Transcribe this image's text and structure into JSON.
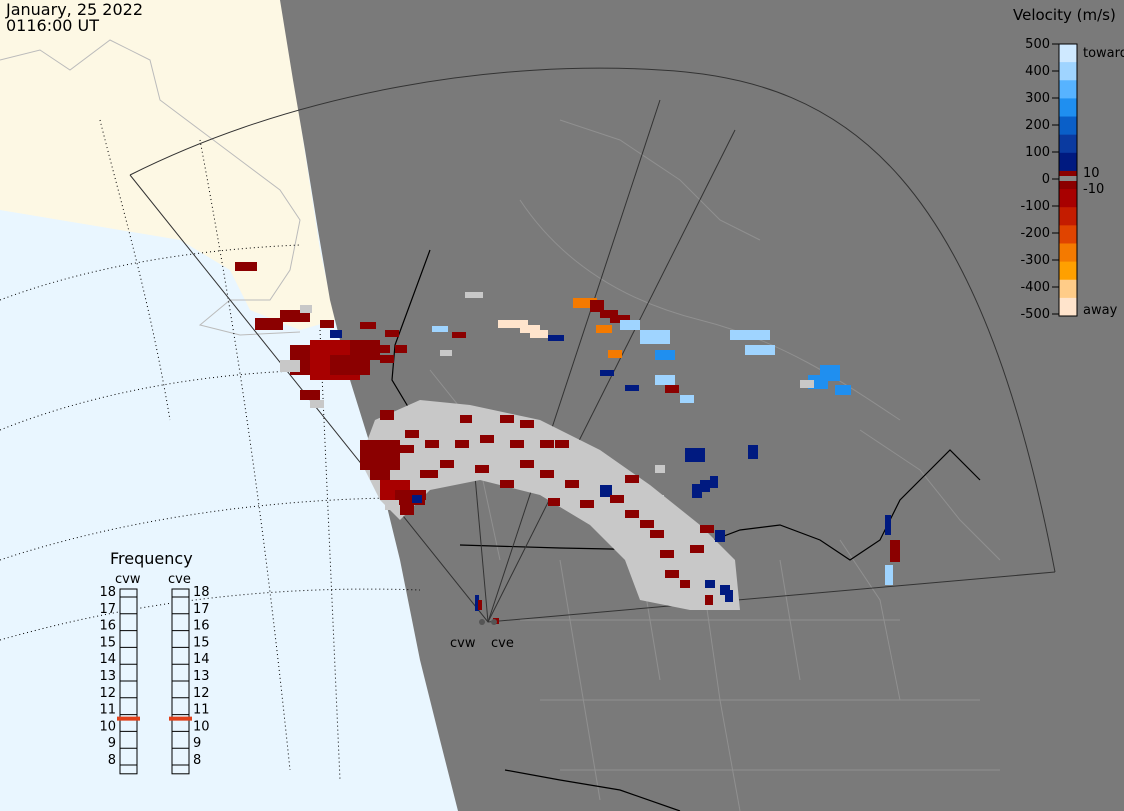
{
  "header": {
    "date": "January, 25 2022",
    "time": "0116:00 UT"
  },
  "legend": {
    "title": "Velocity (m/s)",
    "ticks": [
      "500",
      "400",
      "300",
      "200",
      "100",
      "0",
      "-100",
      "-200",
      "-300",
      "-400",
      "-500"
    ],
    "small_labels": [
      "10",
      "-10"
    ],
    "toward_label": "toward",
    "away_label": "away",
    "colors": [
      "#cfe9ff",
      "#9fd4ff",
      "#57b3ff",
      "#1f8ff0",
      "#0a5fc8",
      "#0a3aa0",
      "#001a80",
      "#8b0000",
      "#a80000",
      "#c41c00",
      "#e04400",
      "#f47a00",
      "#ffa000",
      "#ffcc88",
      "#ffe4cc"
    ]
  },
  "radars": [
    {
      "id": "cvw",
      "label": "cvw",
      "freq": 10.7
    },
    {
      "id": "cve",
      "label": "cve",
      "freq": 10.7
    }
  ],
  "frequency": {
    "title": "Frequency",
    "scale": [
      "18",
      "17",
      "16",
      "15",
      "14",
      "13",
      "12",
      "11",
      "10",
      "9",
      "8"
    ]
  },
  "map_colors": {
    "ocean": "#e9f6ff",
    "land_lit": "#fdf8e4",
    "night": "#7a7a7a",
    "ground_scatter": "#c8c8c8",
    "borders": "#000000",
    "state_lines": "#909090"
  }
}
